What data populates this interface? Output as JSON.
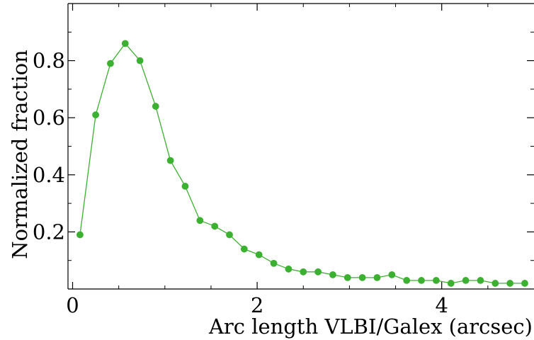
{
  "chart_data": {
    "type": "line",
    "title": "",
    "xlabel": "Arc length VLBI/Galex (arcsec)",
    "ylabel": "Normalized fraction",
    "xlim": [
      -0.05,
      5.0
    ],
    "ylim": [
      0.0,
      1.0
    ],
    "x_ticks": [
      {
        "value": 0,
        "label": "0"
      },
      {
        "value": 2,
        "label": "2"
      },
      {
        "value": 4,
        "label": "4"
      }
    ],
    "y_ticks": [
      {
        "value": 0.2,
        "label": "0.2"
      },
      {
        "value": 0.4,
        "label": "0.4"
      },
      {
        "value": 0.6,
        "label": "0.6"
      },
      {
        "value": 0.8,
        "label": "0.8"
      }
    ],
    "grid": false,
    "legend": null,
    "series": [
      {
        "color": "#3cb030",
        "marker": "circle",
        "x": [
          0.08,
          0.25,
          0.41,
          0.57,
          0.73,
          0.9,
          1.06,
          1.22,
          1.38,
          1.54,
          1.7,
          1.86,
          2.02,
          2.18,
          2.34,
          2.5,
          2.66,
          2.82,
          2.98,
          3.14,
          3.3,
          3.46,
          3.62,
          3.78,
          3.94,
          4.1,
          4.26,
          4.42,
          4.58,
          4.74,
          4.9
        ],
        "y": [
          0.19,
          0.61,
          0.79,
          0.86,
          0.8,
          0.64,
          0.45,
          0.36,
          0.24,
          0.22,
          0.19,
          0.14,
          0.12,
          0.09,
          0.07,
          0.06,
          0.06,
          0.05,
          0.04,
          0.04,
          0.04,
          0.05,
          0.03,
          0.03,
          0.03,
          0.02,
          0.03,
          0.03,
          0.02,
          0.02,
          0.02
        ]
      }
    ]
  }
}
